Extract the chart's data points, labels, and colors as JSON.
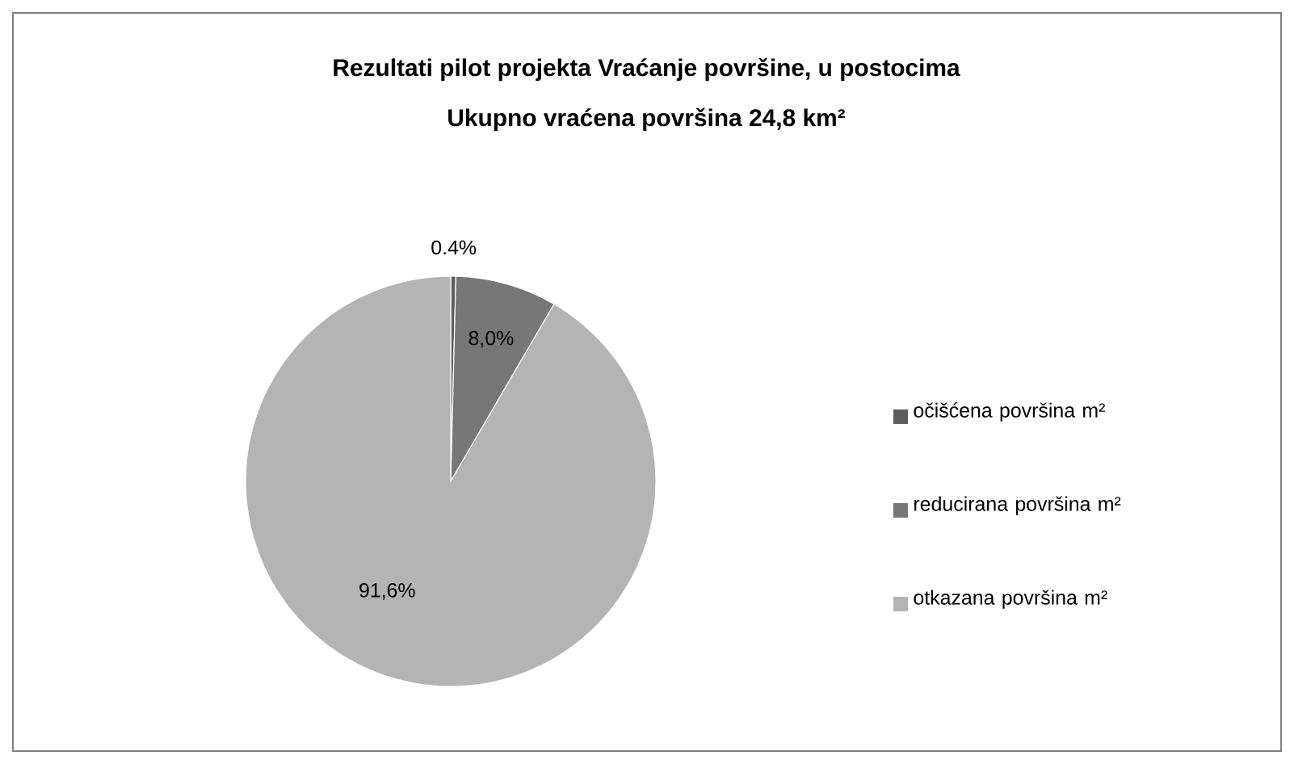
{
  "chart_data": {
    "type": "pie",
    "title": "Rezultati pilot projekta Vraćanje površine, u postocima",
    "subtitle": "Ukupno vraćena površina 24,8 km²",
    "categories": [
      "očišćena površina m²",
      "reducirana površina m²",
      "otkazana površina m²"
    ],
    "values": [
      0.4,
      8.0,
      91.6
    ],
    "value_labels": [
      "0.4%",
      "8,0%",
      "91,6%"
    ],
    "colors": [
      "#5e5e5e",
      "#777777",
      "#b4b4b4"
    ],
    "legend": "right"
  }
}
